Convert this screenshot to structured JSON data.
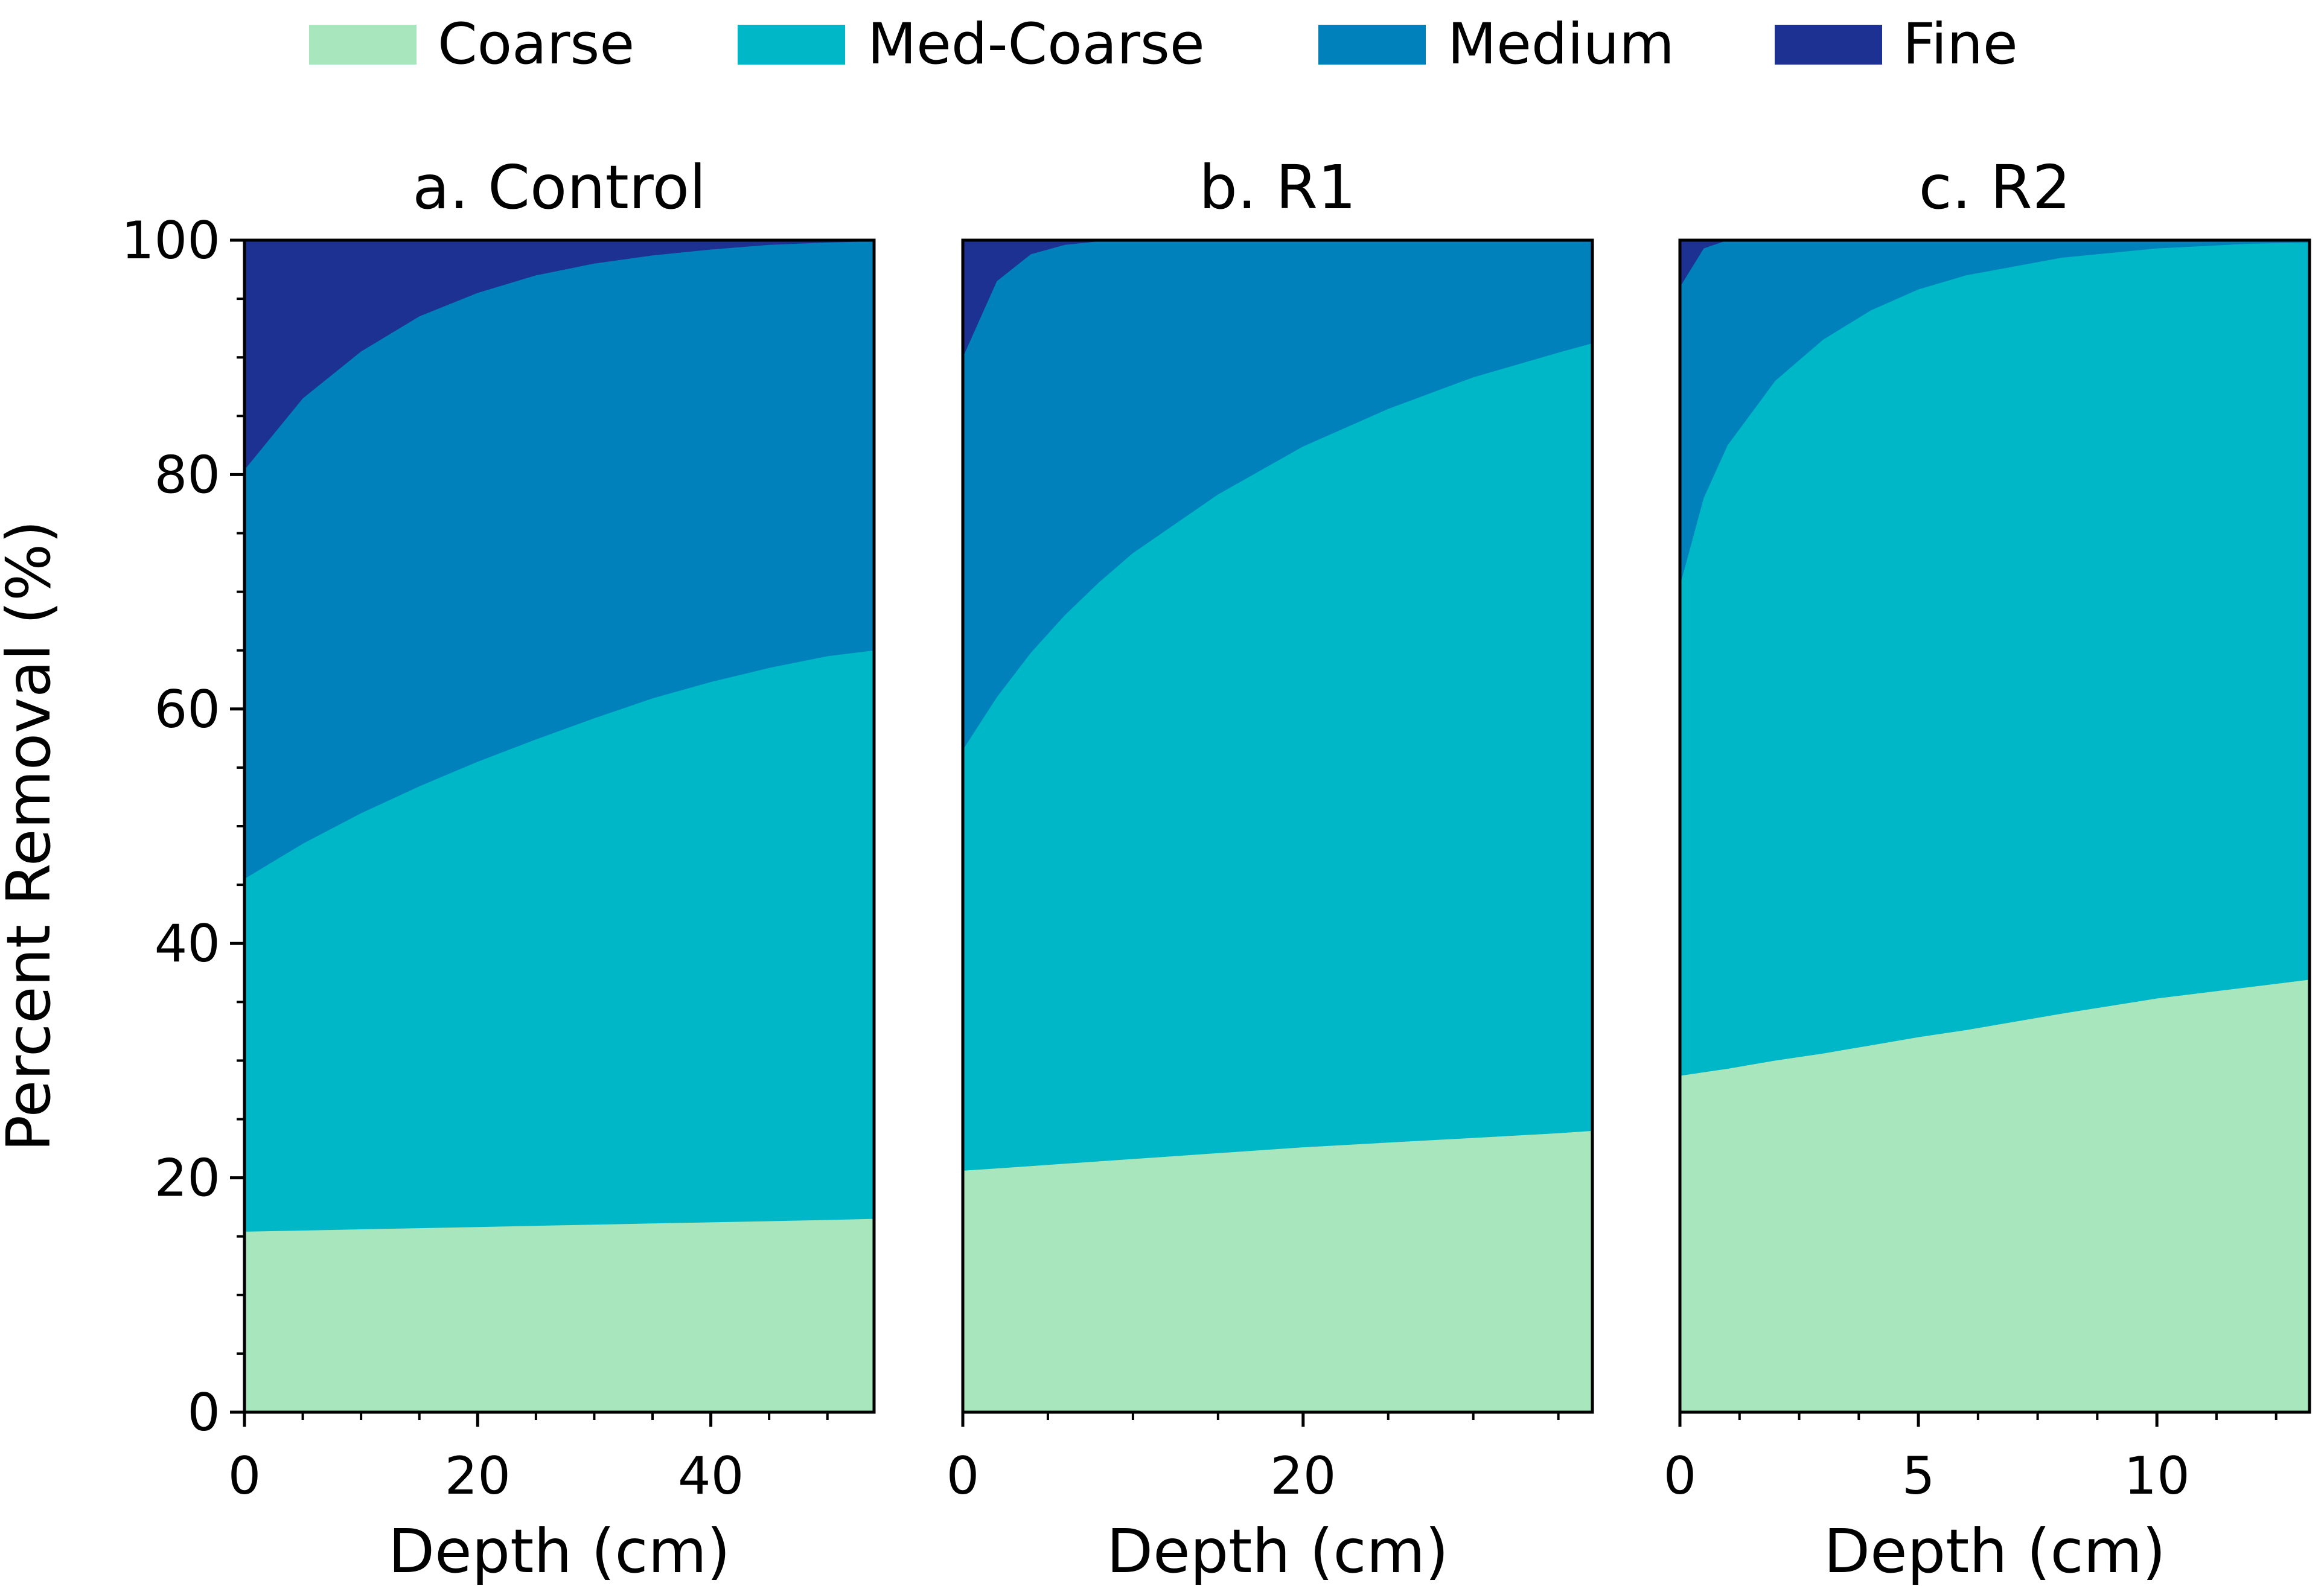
{
  "legend": [
    {
      "label": "Coarse",
      "color": "#a8e6bd"
    },
    {
      "label": "Med-Coarse",
      "color": "#00b7c7"
    },
    {
      "label": "Medium",
      "color": "#0081bb"
    },
    {
      "label": "Fine",
      "color": "#1c3192"
    }
  ],
  "y_axis_label": "Percent Removal (%)",
  "chart_data": [
    {
      "type": "area",
      "stacked": true,
      "title": "a. Control",
      "xlabel": "Depth (cm)",
      "ylabel": "Percent Removal (%)",
      "xlim": [
        0,
        54
      ],
      "ylim": [
        0,
        100
      ],
      "xticks": [
        0,
        20,
        40
      ],
      "yticks": [
        0,
        20,
        40,
        60,
        80,
        100
      ],
      "grid": false,
      "x": [
        0,
        5,
        10,
        15,
        20,
        25,
        30,
        35,
        40,
        45,
        50,
        54
      ],
      "series": [
        {
          "name": "Coarse",
          "values": [
            15.4,
            15.5,
            15.6,
            15.7,
            15.8,
            15.9,
            16.0,
            16.1,
            16.2,
            16.3,
            16.4,
            16.5
          ]
        },
        {
          "name": "Med-Coarse",
          "values": [
            45.5,
            48.5,
            51.1,
            53.4,
            55.5,
            57.4,
            59.2,
            60.9,
            62.3,
            63.5,
            64.5,
            65.0
          ]
        },
        {
          "name": "Medium",
          "values": [
            80.4,
            86.5,
            90.5,
            93.5,
            95.5,
            97.0,
            98.0,
            98.7,
            99.2,
            99.6,
            99.8,
            99.9
          ]
        },
        {
          "name": "Fine",
          "values": [
            100,
            100,
            100,
            100,
            100,
            100,
            100,
            100,
            100,
            100,
            100,
            100
          ]
        }
      ]
    },
    {
      "type": "area",
      "stacked": true,
      "title": "b. R1",
      "xlabel": "Depth (cm)",
      "ylabel": "",
      "xlim": [
        0,
        37
      ],
      "ylim": [
        0,
        100
      ],
      "xticks": [
        0,
        20
      ],
      "yticks": [],
      "grid": false,
      "x": [
        0,
        2,
        4,
        6,
        8,
        10,
        15,
        20,
        25,
        30,
        35,
        37
      ],
      "series": [
        {
          "name": "Coarse",
          "values": [
            20.6,
            20.8,
            21.0,
            21.2,
            21.4,
            21.6,
            22.1,
            22.6,
            23.0,
            23.4,
            23.8,
            24.0
          ]
        },
        {
          "name": "Med-Coarse",
          "values": [
            56.5,
            61.0,
            64.8,
            68.0,
            70.8,
            73.3,
            78.3,
            82.4,
            85.6,
            88.3,
            90.4,
            91.2
          ]
        },
        {
          "name": "Medium",
          "values": [
            90.0,
            96.5,
            98.8,
            99.6,
            99.9,
            100,
            100,
            100,
            100,
            100,
            100,
            100
          ]
        },
        {
          "name": "Fine",
          "values": [
            100,
            100,
            100,
            100,
            100,
            100,
            100,
            100,
            100,
            100,
            100,
            100
          ]
        }
      ]
    },
    {
      "type": "area",
      "stacked": true,
      "title": "c. R2",
      "xlabel": "Depth (cm)",
      "ylabel": "",
      "xlim": [
        0,
        13.2
      ],
      "ylim": [
        0,
        100
      ],
      "xticks": [
        0,
        5,
        10
      ],
      "yticks": [],
      "grid": false,
      "x": [
        0,
        0.5,
        1,
        2,
        3,
        4,
        5,
        6,
        8,
        10,
        12,
        13.2
      ],
      "series": [
        {
          "name": "Coarse",
          "values": [
            28.7,
            29.0,
            29.3,
            30.0,
            30.6,
            31.3,
            32.0,
            32.6,
            34.0,
            35.3,
            36.3,
            36.9
          ]
        },
        {
          "name": "Med-Coarse",
          "values": [
            70.5,
            78.0,
            82.5,
            88.0,
            91.5,
            94.0,
            95.8,
            97.0,
            98.5,
            99.3,
            99.7,
            99.8
          ]
        },
        {
          "name": "Medium",
          "values": [
            96.0,
            99.3,
            100,
            100,
            100,
            100,
            100,
            100,
            100,
            100,
            100,
            100
          ]
        },
        {
          "name": "Fine",
          "values": [
            100,
            100,
            100,
            100,
            100,
            100,
            100,
            100,
            100,
            100,
            100,
            100
          ]
        }
      ]
    }
  ]
}
